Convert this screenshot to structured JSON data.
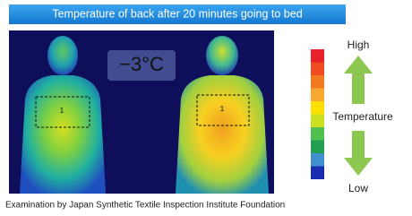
{
  "header": {
    "title": "Temperature of back after 20 minutes going to bed"
  },
  "image": {
    "annotation": "−3°C",
    "region_labels": [
      "1",
      "1"
    ]
  },
  "legend": {
    "high": "High",
    "label": "Temperature",
    "low": "Low"
  },
  "footer": {
    "source": "Examination by Japan Synthetic Textile Inspection Institute Foundation"
  }
}
